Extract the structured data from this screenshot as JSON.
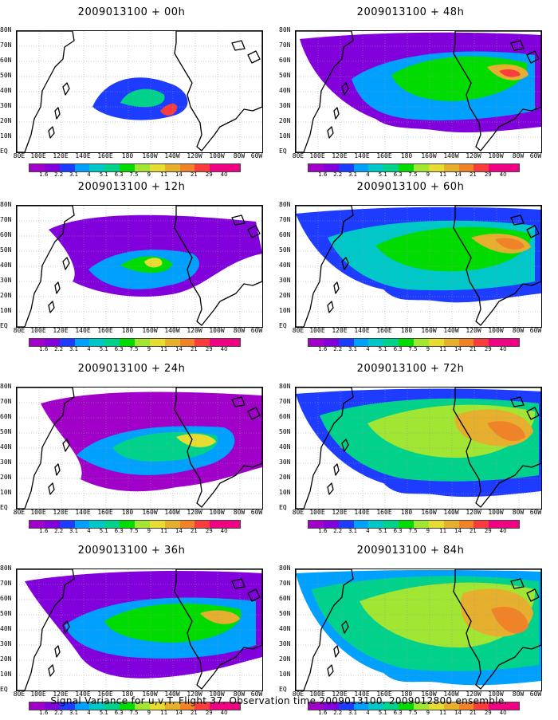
{
  "panels": [
    {
      "title": "2009013100 + 00h",
      "level": 0
    },
    {
      "title": "2009013100 + 48h",
      "level": 4
    },
    {
      "title": "2009013100 + 12h",
      "level": 1
    },
    {
      "title": "2009013100 + 60h",
      "level": 5
    },
    {
      "title": "2009013100 + 24h",
      "level": 2
    },
    {
      "title": "2009013100 + 72h",
      "level": 6
    },
    {
      "title": "2009013100 + 36h",
      "level": 3
    },
    {
      "title": "2009013100 + 84h",
      "level": 7
    }
  ],
  "lat_labels": [
    "80N",
    "70N",
    "60N",
    "50N",
    "40N",
    "30N",
    "20N",
    "10N",
    "EQ"
  ],
  "lon_labels": [
    "80E",
    "100E",
    "120E",
    "140E",
    "160E",
    "180",
    "160W",
    "140W",
    "120W",
    "100W",
    "80W",
    "60W"
  ],
  "colorbar": {
    "levels": [
      "1.6",
      "2.2",
      "3.1",
      "4",
      "5.1",
      "6.3",
      "7.5",
      "9",
      "11",
      "14",
      "21",
      "29",
      "40"
    ],
    "colors": [
      "#a000c8",
      "#8200dc",
      "#1e3cff",
      "#00a0ff",
      "#00c8c8",
      "#00d28c",
      "#00dc00",
      "#a0e632",
      "#e6dc32",
      "#e6af2d",
      "#f08228",
      "#fa3c3c",
      "#f00082"
    ]
  },
  "caption": "Signal Variance for u,v,T. Flight 37. Observation time 2009013100. 2009012800 ensemble."
}
